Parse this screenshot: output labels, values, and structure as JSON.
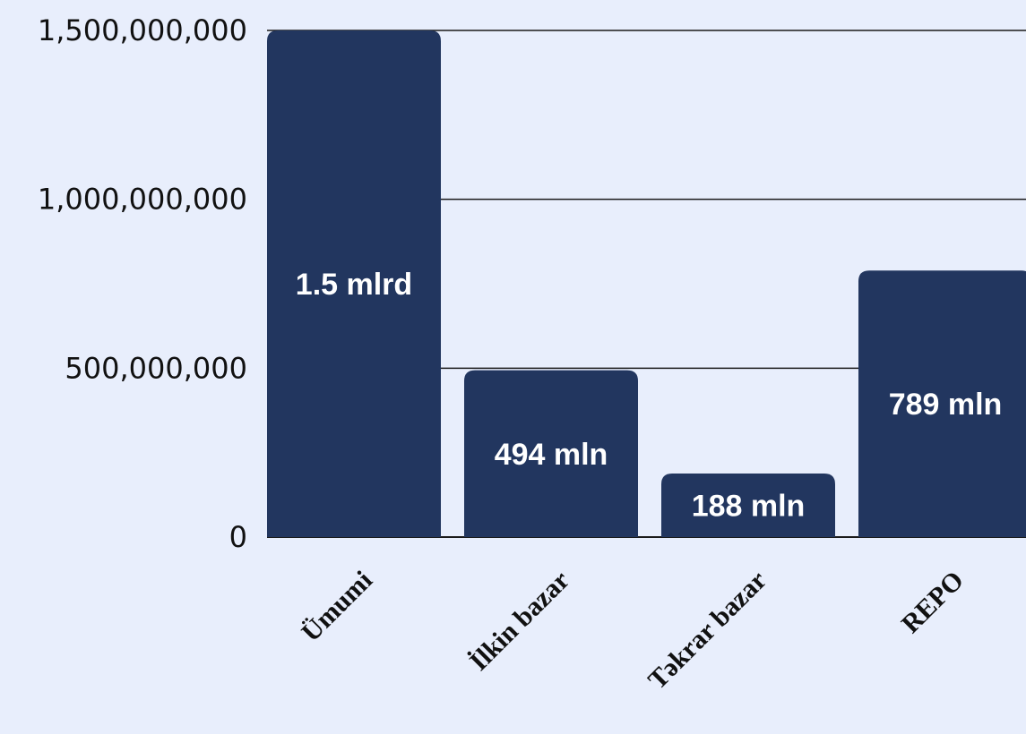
{
  "chart_data": {
    "type": "bar",
    "title": "",
    "xlabel": "",
    "ylabel": "",
    "categories": [
      "Ümumi",
      "İlkin bazar",
      "Təkrar bazar",
      "REPO"
    ],
    "values": [
      1500000000,
      494000000,
      188000000,
      789000000
    ],
    "data_labels": [
      "1.5 mlrd",
      "494 mln",
      "188 mln",
      "789 mln"
    ],
    "ylim": [
      0,
      1500000000
    ],
    "yticks": [
      0,
      500000000,
      1000000000,
      1500000000
    ],
    "ytick_labels": [
      "0",
      "500,000,000",
      "1,000,000,000",
      "1,500,000,000"
    ],
    "grid": true,
    "legend": "none",
    "colors": {
      "bar": "#22365f",
      "background": "#e8eefc",
      "grid": "#1a1a1a",
      "data_label": "#ffffff"
    }
  }
}
